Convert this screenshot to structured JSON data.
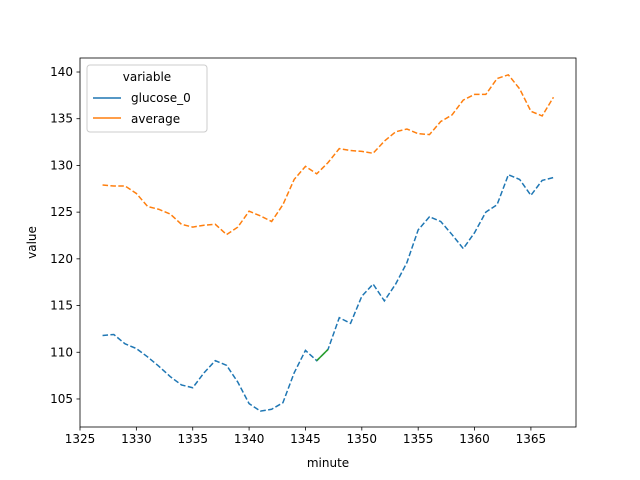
{
  "chart_data": {
    "type": "line",
    "xlabel": "minute",
    "ylabel": "value",
    "xlim": [
      1325,
      1369
    ],
    "ylim": [
      102,
      141.5
    ],
    "xticks": [
      1325,
      1330,
      1335,
      1340,
      1345,
      1350,
      1355,
      1360,
      1365
    ],
    "yticks": [
      105,
      110,
      115,
      120,
      125,
      130,
      135,
      140
    ],
    "grid": false,
    "legend": {
      "title": "variable",
      "placement": "upper-left"
    },
    "x": [
      1327,
      1328,
      1329,
      1330,
      1331,
      1332,
      1333,
      1334,
      1335,
      1336,
      1337,
      1338,
      1339,
      1340,
      1341,
      1342,
      1343,
      1344,
      1345,
      1346,
      1347,
      1348,
      1349,
      1350,
      1351,
      1352,
      1353,
      1354,
      1355,
      1356,
      1357,
      1358,
      1359,
      1360,
      1361,
      1362,
      1363,
      1364,
      1365,
      1366,
      1367
    ],
    "series": [
      {
        "name": "glucose_0",
        "color": "#1f77b4",
        "style": "dashed",
        "values": [
          111.8,
          111.9,
          110.9,
          110.4,
          109.5,
          108.5,
          107.4,
          106.5,
          106.2,
          107.8,
          109.1,
          108.6,
          106.8,
          104.5,
          103.7,
          103.9,
          104.6,
          107.8,
          110.2,
          109.1,
          110.3,
          113.7,
          113.1,
          116.0,
          117.3,
          115.5,
          117.3,
          119.6,
          123.1,
          124.5,
          124.0,
          122.6,
          121.1,
          122.8,
          125.0,
          125.8,
          129.0,
          128.5,
          126.8,
          128.4,
          128.7
        ]
      },
      {
        "name": "average",
        "color": "#ff7f0e",
        "style": "dashed",
        "values": [
          127.9,
          127.8,
          127.8,
          127.0,
          125.6,
          125.3,
          124.8,
          123.7,
          123.4,
          123.6,
          123.7,
          122.6,
          123.4,
          125.1,
          124.6,
          124.0,
          125.8,
          128.5,
          129.9,
          129.1,
          130.3,
          131.8,
          131.6,
          131.5,
          131.3,
          132.6,
          133.6,
          133.9,
          133.4,
          133.3,
          134.7,
          135.4,
          137.0,
          137.6,
          137.6,
          139.3,
          139.7,
          138.2,
          135.8,
          135.3,
          137.3
        ]
      }
    ],
    "highlight": {
      "color": "#2ca02c",
      "x": [
        1346,
        1347
      ],
      "values": [
        109.1,
        110.3
      ]
    }
  }
}
